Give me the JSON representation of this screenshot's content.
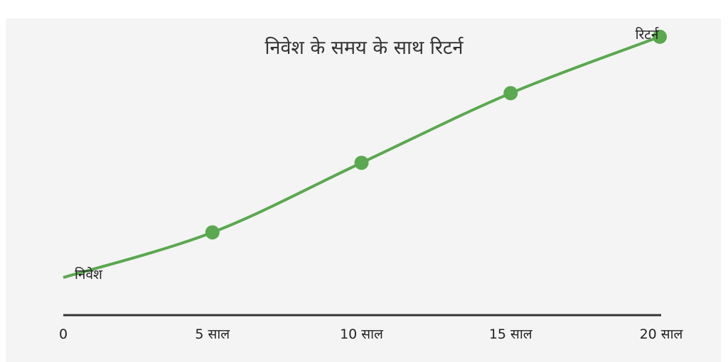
{
  "chart_data": {
    "type": "line",
    "title": "निवेश के समय के साथ रिटर्न",
    "start_label": "निवेश",
    "end_label": "रिटर्न",
    "categories": [
      "0",
      "5 साल",
      "10 साल",
      "15 साल",
      "20 साल"
    ],
    "x": [
      0,
      5,
      10,
      15,
      20
    ],
    "values": [
      1.0,
      2.2,
      4.05,
      5.9,
      7.4
    ],
    "markers_on": [
      5,
      10,
      15,
      20
    ],
    "series_color": "#5aa84f",
    "axis_color": "#333333",
    "background": "#f4f4f4",
    "y_axis_shown": false,
    "ylim": [
      0,
      8
    ]
  }
}
